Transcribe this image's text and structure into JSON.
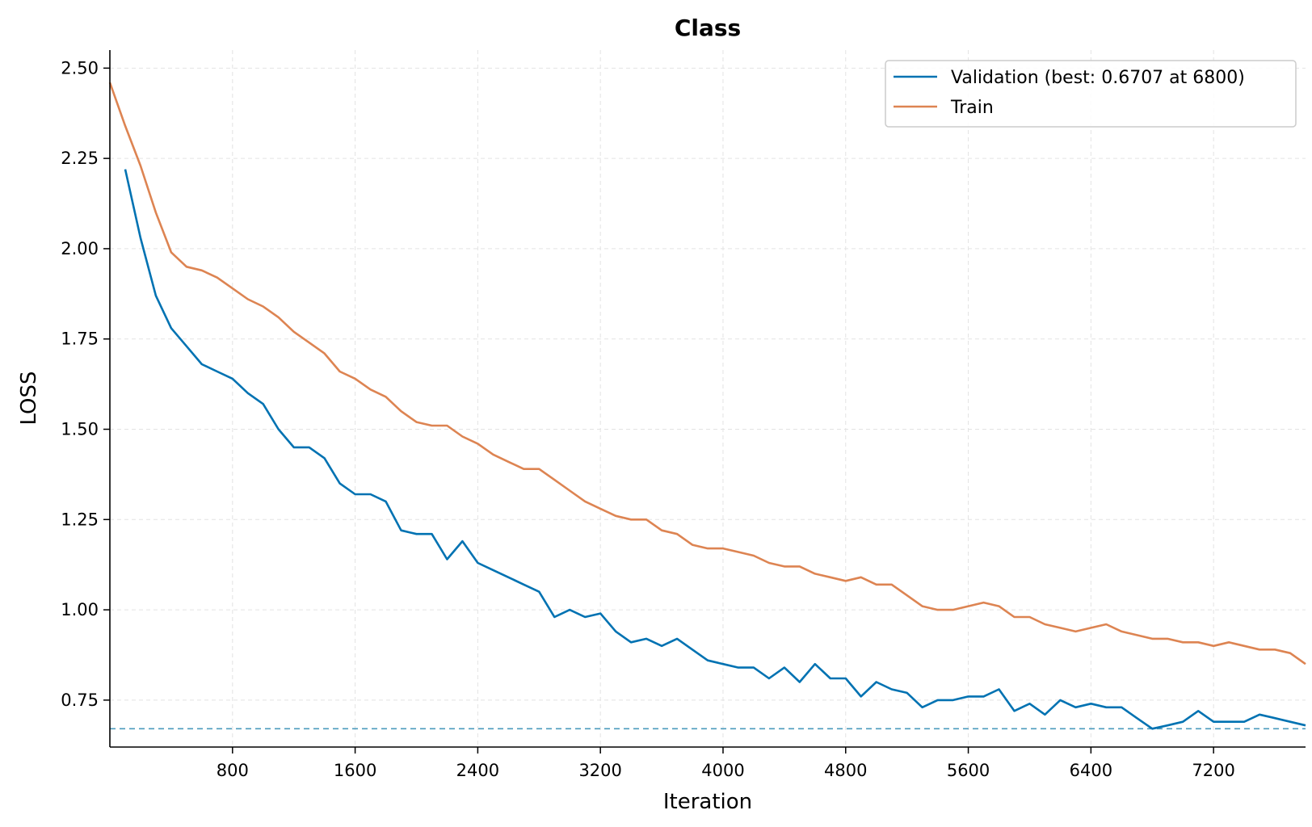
{
  "chart_data": {
    "type": "line",
    "title": "Class",
    "xlabel": "Iteration",
    "ylabel": "LOSS",
    "xlim": [
      0,
      7800
    ],
    "ylim": [
      0.62,
      2.55
    ],
    "x_ticks": [
      800,
      1600,
      2400,
      3200,
      4000,
      4800,
      5600,
      6400,
      7200
    ],
    "x_tick_labels": [
      "800",
      "1600",
      "2400",
      "3200",
      "4000",
      "4800",
      "5600",
      "6400",
      "7200"
    ],
    "y_ticks": [
      0.75,
      1.0,
      1.25,
      1.5,
      1.75,
      2.0,
      2.25,
      2.5
    ],
    "y_tick_labels": [
      "0.75",
      "1.00",
      "1.25",
      "1.50",
      "1.75",
      "2.00",
      "2.25",
      "2.50"
    ],
    "grid": true,
    "legend_position": "top-right",
    "series": [
      {
        "name": "Validation (best: 0.6707 at 6800)",
        "color": "#0072b2",
        "x": [
          100,
          200,
          300,
          400,
          500,
          600,
          700,
          800,
          900,
          1000,
          1100,
          1200,
          1300,
          1400,
          1500,
          1600,
          1700,
          1800,
          1900,
          2000,
          2100,
          2200,
          2300,
          2400,
          2500,
          2600,
          2700,
          2800,
          2900,
          3000,
          3100,
          3200,
          3300,
          3400,
          3500,
          3600,
          3700,
          3800,
          3900,
          4000,
          4100,
          4200,
          4300,
          4400,
          4500,
          4600,
          4700,
          4800,
          4900,
          5000,
          5100,
          5200,
          5300,
          5400,
          5500,
          5600,
          5700,
          5800,
          5900,
          6000,
          6100,
          6200,
          6300,
          6400,
          6500,
          6600,
          6700,
          6800,
          6900,
          7000,
          7100,
          7200,
          7300,
          7400,
          7500,
          7600,
          7700,
          7800
        ],
        "values": [
          2.22,
          2.03,
          1.87,
          1.78,
          1.73,
          1.68,
          1.66,
          1.64,
          1.6,
          1.57,
          1.5,
          1.45,
          1.45,
          1.42,
          1.35,
          1.32,
          1.32,
          1.3,
          1.22,
          1.21,
          1.21,
          1.14,
          1.19,
          1.13,
          1.11,
          1.09,
          1.07,
          1.05,
          0.98,
          1.0,
          0.98,
          0.99,
          0.94,
          0.91,
          0.92,
          0.9,
          0.92,
          0.89,
          0.86,
          0.85,
          0.84,
          0.84,
          0.81,
          0.84,
          0.8,
          0.85,
          0.81,
          0.81,
          0.76,
          0.8,
          0.78,
          0.77,
          0.73,
          0.75,
          0.75,
          0.76,
          0.76,
          0.78,
          0.72,
          0.74,
          0.71,
          0.75,
          0.73,
          0.74,
          0.73,
          0.73,
          0.7,
          0.6707,
          0.68,
          0.69,
          0.72,
          0.69,
          0.69,
          0.69,
          0.71,
          0.7,
          0.69,
          0.68
        ]
      },
      {
        "name": "Train",
        "color": "#dd8452",
        "x": [
          0,
          100,
          200,
          300,
          400,
          500,
          600,
          700,
          800,
          900,
          1000,
          1100,
          1200,
          1300,
          1400,
          1500,
          1600,
          1700,
          1800,
          1900,
          2000,
          2100,
          2200,
          2300,
          2400,
          2500,
          2600,
          2700,
          2800,
          2900,
          3000,
          3100,
          3200,
          3300,
          3400,
          3500,
          3600,
          3700,
          3800,
          3900,
          4000,
          4100,
          4200,
          4300,
          4400,
          4500,
          4600,
          4700,
          4800,
          4900,
          5000,
          5100,
          5200,
          5300,
          5400,
          5500,
          5600,
          5700,
          5800,
          5900,
          6000,
          6100,
          6200,
          6300,
          6400,
          6500,
          6600,
          6700,
          6800,
          6900,
          7000,
          7100,
          7200,
          7300,
          7400,
          7500,
          7600,
          7700,
          7800
        ],
        "values": [
          2.46,
          2.34,
          2.23,
          2.1,
          1.99,
          1.95,
          1.94,
          1.92,
          1.89,
          1.86,
          1.84,
          1.81,
          1.77,
          1.74,
          1.71,
          1.66,
          1.64,
          1.61,
          1.59,
          1.55,
          1.52,
          1.51,
          1.51,
          1.48,
          1.46,
          1.43,
          1.41,
          1.39,
          1.39,
          1.36,
          1.33,
          1.3,
          1.28,
          1.26,
          1.25,
          1.25,
          1.22,
          1.21,
          1.18,
          1.17,
          1.17,
          1.16,
          1.15,
          1.13,
          1.12,
          1.12,
          1.1,
          1.09,
          1.08,
          1.09,
          1.07,
          1.07,
          1.04,
          1.01,
          1.0,
          1.0,
          1.01,
          1.02,
          1.01,
          0.98,
          0.98,
          0.96,
          0.95,
          0.94,
          0.95,
          0.96,
          0.94,
          0.93,
          0.92,
          0.92,
          0.91,
          0.91,
          0.9,
          0.91,
          0.9,
          0.89,
          0.89,
          0.88,
          0.85
        ]
      }
    ],
    "reference_line": {
      "y": 0.6707,
      "style": "dashed",
      "color": "#4c9bbd"
    }
  }
}
